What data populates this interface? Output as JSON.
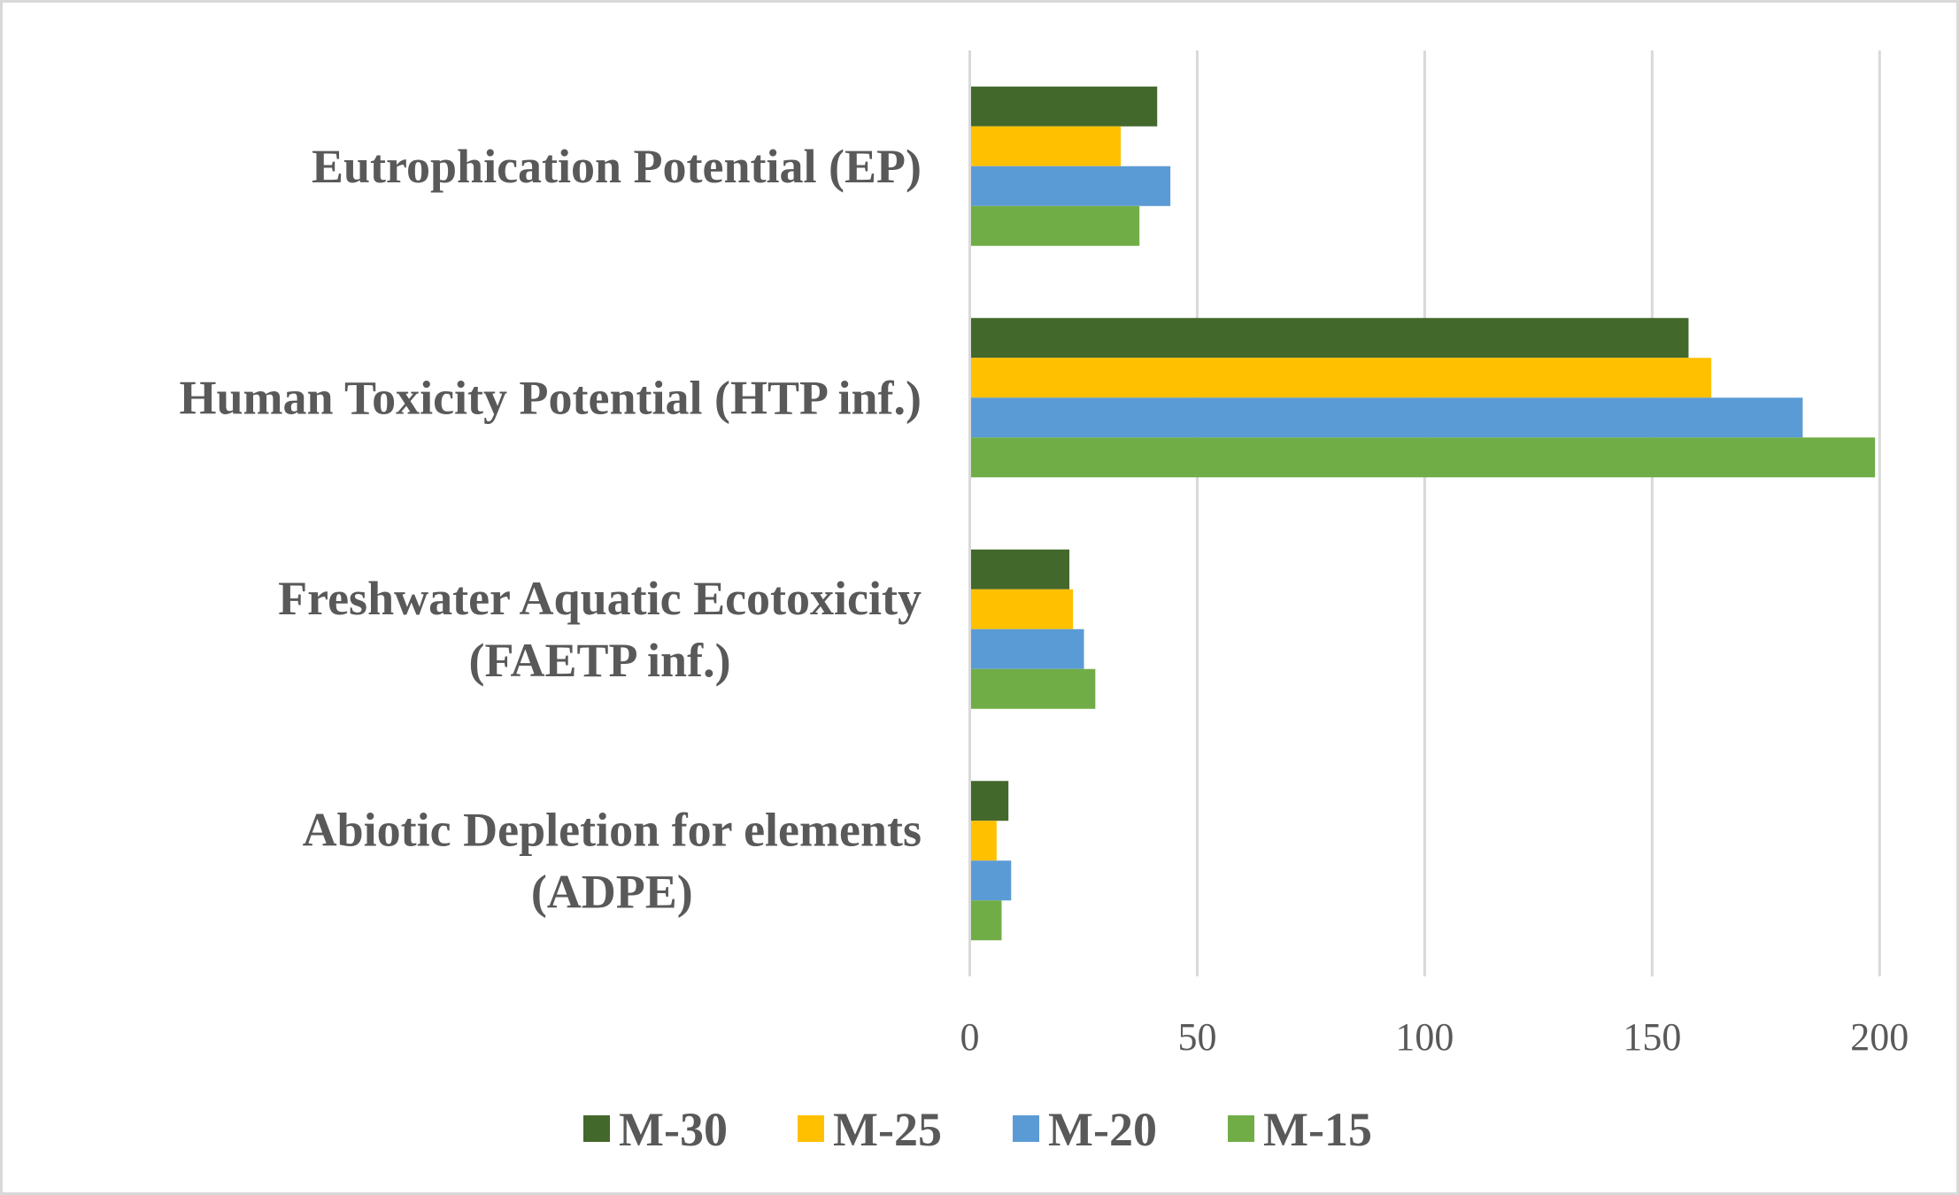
{
  "chart_data": {
    "type": "bar",
    "orientation": "horizontal",
    "title": "",
    "xlabel": "",
    "ylabel": "",
    "xlim": [
      0,
      200
    ],
    "x_ticks": [
      "0",
      "50",
      "100",
      "150",
      "200"
    ],
    "grid": true,
    "legend_position": "bottom",
    "categories": [
      [
        "Eutrophication Potential (EP)"
      ],
      [
        "Human Toxicity Potential (HTP inf.)"
      ],
      [
        "Freshwater Aquatic Ecotoxicity",
        "(FAETP inf.)"
      ],
      [
        "Abiotic Depletion for elements",
        "(ADPE)"
      ]
    ],
    "series": [
      {
        "name": "M-30",
        "color": "#43682b",
        "values": [
          41.2,
          158.0,
          21.9,
          8.5
        ]
      },
      {
        "name": "M-25",
        "color": "#ffc000",
        "values": [
          33.2,
          163.0,
          22.7,
          5.9
        ]
      },
      {
        "name": "M-20",
        "color": "#5b9bd5",
        "values": [
          44.1,
          183.1,
          25.1,
          9.1
        ]
      },
      {
        "name": "M-15",
        "color": "#70ad47",
        "values": [
          37.3,
          199.0,
          27.6,
          7.0
        ]
      }
    ]
  }
}
